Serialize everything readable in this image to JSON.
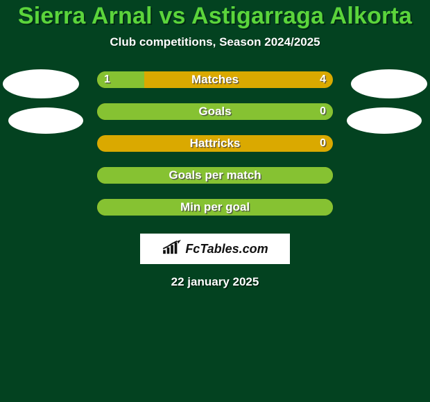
{
  "colors": {
    "background": "#034220",
    "title": "#5bd43b",
    "subtitle": "#ffffff",
    "bar_base": "#daa900",
    "bar_fill_left": "#86c232",
    "brand_bg": "#ffffff"
  },
  "header": {
    "title": "Sierra Arnal vs Astigarraga Alkorta",
    "subtitle": "Club competitions, Season 2024/2025"
  },
  "stats": {
    "rows": [
      {
        "label": "Matches",
        "left": "1",
        "right": "4",
        "fill_pct": 20
      },
      {
        "label": "Goals",
        "left": "",
        "right": "0",
        "fill_pct": 100
      },
      {
        "label": "Hattricks",
        "left": "",
        "right": "0",
        "fill_pct": 0
      },
      {
        "label": "Goals per match",
        "left": "",
        "right": "",
        "fill_pct": 100
      },
      {
        "label": "Min per goal",
        "left": "",
        "right": "",
        "fill_pct": 100
      }
    ]
  },
  "brand": {
    "text": "FcTables.com"
  },
  "footer": {
    "date": "22 january 2025"
  }
}
